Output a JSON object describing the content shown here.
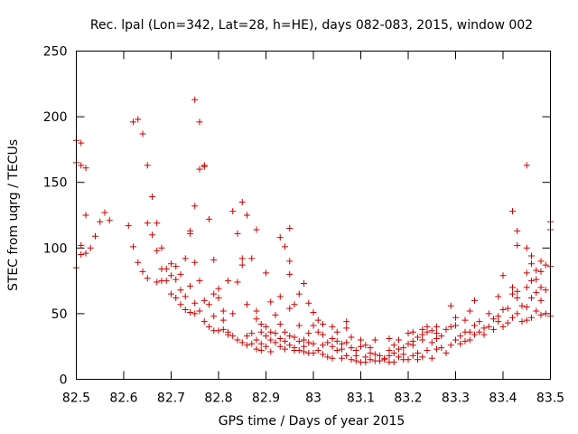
{
  "chart_data": {
    "type": "scatter",
    "title": "Rec. lpal (Lon=342, Lat=28, h=HE), days 082-083, 2015, window 002",
    "xlabel": "GPS time / Days of year 2015",
    "ylabel": "STEC from uqrg / TECUs",
    "xlim": [
      82.5,
      83.5
    ],
    "ylim": [
      0,
      250
    ],
    "xticks": [
      "82.5",
      "82.6",
      "82.7",
      "82.8",
      "82.9",
      "83",
      "83.1",
      "83.2",
      "83.3",
      "83.4",
      "83.5"
    ],
    "yticks": [
      "0",
      "50",
      "100",
      "150",
      "200",
      "250"
    ],
    "grid": false,
    "legend": "none",
    "marker": "plus",
    "color": "#cc0000",
    "series": [
      {
        "points": [
          [
            82.5,
            85
          ],
          [
            82.5,
            165
          ],
          [
            82.5,
            182
          ],
          [
            82.51,
            180
          ],
          [
            82.51,
            163
          ],
          [
            82.51,
            102
          ],
          [
            82.51,
            95
          ],
          [
            82.52,
            161
          ],
          [
            82.52,
            125
          ],
          [
            82.52,
            96
          ],
          [
            82.53,
            100
          ],
          [
            82.54,
            109
          ],
          [
            82.55,
            120
          ],
          [
            82.56,
            127
          ],
          [
            82.57,
            121
          ],
          [
            82.61,
            117
          ],
          [
            82.62,
            101
          ],
          [
            82.62,
            196
          ],
          [
            82.63,
            198
          ],
          [
            82.63,
            89
          ],
          [
            82.64,
            187
          ],
          [
            82.64,
            82
          ],
          [
            82.65,
            163
          ],
          [
            82.65,
            119
          ],
          [
            82.65,
            77
          ],
          [
            82.66,
            139
          ],
          [
            82.66,
            110
          ],
          [
            82.67,
            74
          ],
          [
            82.67,
            119
          ],
          [
            82.67,
            98
          ],
          [
            82.68,
            100
          ],
          [
            82.68,
            84
          ],
          [
            82.68,
            75
          ],
          [
            82.69,
            84
          ],
          [
            82.69,
            75
          ],
          [
            82.7,
            88
          ],
          [
            82.7,
            79
          ],
          [
            82.7,
            65
          ],
          [
            82.71,
            86
          ],
          [
            82.71,
            76
          ],
          [
            82.71,
            62
          ],
          [
            82.72,
            80
          ],
          [
            82.72,
            68
          ],
          [
            82.72,
            57
          ],
          [
            82.73,
            92
          ],
          [
            82.73,
            63
          ],
          [
            82.73,
            53
          ],
          [
            82.74,
            111
          ],
          [
            82.74,
            113
          ],
          [
            82.74,
            71
          ],
          [
            82.74,
            51
          ],
          [
            82.75,
            213
          ],
          [
            82.75,
            132
          ],
          [
            82.75,
            89
          ],
          [
            82.75,
            58
          ],
          [
            82.75,
            50
          ],
          [
            82.76,
            196
          ],
          [
            82.76,
            160
          ],
          [
            82.76,
            75
          ],
          [
            82.76,
            52
          ],
          [
            82.77,
            162
          ],
          [
            82.77,
            163
          ],
          [
            82.77,
            60
          ],
          [
            82.77,
            44
          ],
          [
            82.78,
            122
          ],
          [
            82.78,
            57
          ],
          [
            82.78,
            40
          ],
          [
            82.79,
            91
          ],
          [
            82.79,
            65
          ],
          [
            82.79,
            48
          ],
          [
            82.79,
            37
          ],
          [
            82.8,
            69
          ],
          [
            82.8,
            62
          ],
          [
            82.8,
            37
          ],
          [
            82.81,
            52
          ],
          [
            82.81,
            45
          ],
          [
            82.81,
            38
          ],
          [
            82.82,
            75
          ],
          [
            82.82,
            36
          ],
          [
            82.82,
            34
          ],
          [
            82.83,
            128
          ],
          [
            82.83,
            50
          ],
          [
            82.83,
            33
          ],
          [
            82.84,
            111
          ],
          [
            82.84,
            74
          ],
          [
            82.84,
            30
          ],
          [
            82.85,
            135
          ],
          [
            82.85,
            92
          ],
          [
            82.85,
            87
          ],
          [
            82.85,
            28
          ],
          [
            82.86,
            125
          ],
          [
            82.86,
            57
          ],
          [
            82.86,
            33
          ],
          [
            82.86,
            26
          ],
          [
            82.87,
            92
          ],
          [
            82.87,
            27
          ],
          [
            82.87,
            35
          ],
          [
            82.88,
            114
          ],
          [
            82.88,
            52
          ],
          [
            82.88,
            46
          ],
          [
            82.88,
            30
          ],
          [
            82.88,
            23
          ],
          [
            82.89,
            42
          ],
          [
            82.89,
            36
          ],
          [
            82.89,
            27
          ],
          [
            82.89,
            22
          ],
          [
            82.9,
            81
          ],
          [
            82.9,
            40
          ],
          [
            82.9,
            33
          ],
          [
            82.9,
            25
          ],
          [
            82.91,
            59
          ],
          [
            82.91,
            36
          ],
          [
            82.91,
            30
          ],
          [
            82.91,
            21
          ],
          [
            82.92,
            49
          ],
          [
            82.92,
            35
          ],
          [
            82.92,
            28
          ],
          [
            82.93,
            108
          ],
          [
            82.93,
            63
          ],
          [
            82.93,
            42
          ],
          [
            82.93,
            31
          ],
          [
            82.93,
            25
          ],
          [
            82.94,
            101
          ],
          [
            82.94,
            36
          ],
          [
            82.94,
            29
          ],
          [
            82.94,
            23
          ],
          [
            82.95,
            115
          ],
          [
            82.95,
            90
          ],
          [
            82.95,
            80
          ],
          [
            82.95,
            54
          ],
          [
            82.95,
            33
          ],
          [
            82.95,
            26
          ],
          [
            82.96,
            57
          ],
          [
            82.96,
            32
          ],
          [
            82.96,
            24
          ],
          [
            82.96,
            22
          ],
          [
            82.97,
            65
          ],
          [
            82.97,
            41
          ],
          [
            82.97,
            29
          ],
          [
            82.97,
            22
          ],
          [
            82.98,
            73
          ],
          [
            82.98,
            30
          ],
          [
            82.98,
            25
          ],
          [
            82.98,
            21
          ],
          [
            82.99,
            58
          ],
          [
            82.99,
            35
          ],
          [
            82.99,
            28
          ],
          [
            82.99,
            20
          ],
          [
            83.0,
            51
          ],
          [
            83.0,
            41
          ],
          [
            83.0,
            27
          ],
          [
            83.0,
            20
          ],
          [
            83.01,
            45
          ],
          [
            83.01,
            36
          ],
          [
            83.01,
            22
          ],
          [
            83.02,
            42
          ],
          [
            83.02,
            34
          ],
          [
            83.02,
            26
          ],
          [
            83.02,
            19
          ],
          [
            83.03,
            28
          ],
          [
            83.03,
            17
          ],
          [
            83.04,
            40
          ],
          [
            83.04,
            31
          ],
          [
            83.04,
            25
          ],
          [
            83.04,
            16
          ],
          [
            83.05,
            36
          ],
          [
            83.05,
            29
          ],
          [
            83.05,
            22
          ],
          [
            83.06,
            27
          ],
          [
            83.06,
            23
          ],
          [
            83.06,
            16
          ],
          [
            83.07,
            44
          ],
          [
            83.07,
            39
          ],
          [
            83.07,
            28
          ],
          [
            83.07,
            18
          ],
          [
            83.08,
            32
          ],
          [
            83.08,
            24
          ],
          [
            83.08,
            15
          ],
          [
            83.09,
            22
          ],
          [
            83.09,
            18
          ],
          [
            83.09,
            14
          ],
          [
            83.1,
            30
          ],
          [
            83.1,
            25
          ],
          [
            83.1,
            13
          ],
          [
            83.11,
            26
          ],
          [
            83.11,
            17
          ],
          [
            83.11,
            13
          ],
          [
            83.12,
            24
          ],
          [
            83.12,
            20
          ],
          [
            83.12,
            15
          ],
          [
            83.13,
            30
          ],
          [
            83.13,
            19
          ],
          [
            83.13,
            14
          ],
          [
            83.14,
            18
          ],
          [
            83.14,
            14
          ],
          [
            83.15,
            16
          ],
          [
            83.15,
            15
          ],
          [
            83.16,
            31
          ],
          [
            83.16,
            22
          ],
          [
            83.16,
            18
          ],
          [
            83.16,
            13
          ],
          [
            83.17,
            26
          ],
          [
            83.17,
            20
          ],
          [
            83.17,
            13
          ],
          [
            83.18,
            30
          ],
          [
            83.18,
            23
          ],
          [
            83.18,
            17
          ],
          [
            83.19,
            24
          ],
          [
            83.19,
            19
          ],
          [
            83.19,
            15
          ],
          [
            83.2,
            35
          ],
          [
            83.2,
            27
          ],
          [
            83.2,
            15
          ],
          [
            83.21,
            36
          ],
          [
            83.21,
            29
          ],
          [
            83.21,
            26
          ],
          [
            83.21,
            18
          ],
          [
            83.22,
            32
          ],
          [
            83.22,
            20
          ],
          [
            83.22,
            15
          ],
          [
            83.23,
            38
          ],
          [
            83.23,
            34
          ],
          [
            83.23,
            30
          ],
          [
            83.23,
            17
          ],
          [
            83.24,
            40
          ],
          [
            83.24,
            36
          ],
          [
            83.24,
            22
          ],
          [
            83.25,
            37
          ],
          [
            83.25,
            28
          ],
          [
            83.25,
            16
          ],
          [
            83.26,
            40
          ],
          [
            83.26,
            35
          ],
          [
            83.26,
            31
          ],
          [
            83.26,
            23
          ],
          [
            83.27,
            33
          ],
          [
            83.27,
            24
          ],
          [
            83.28,
            38
          ],
          [
            83.28,
            20
          ],
          [
            83.29,
            56
          ],
          [
            83.29,
            40
          ],
          [
            83.29,
            26
          ],
          [
            83.3,
            47
          ],
          [
            83.3,
            41
          ],
          [
            83.3,
            30
          ],
          [
            83.31,
            33
          ],
          [
            83.31,
            27
          ],
          [
            83.32,
            45
          ],
          [
            83.32,
            36
          ],
          [
            83.32,
            29
          ],
          [
            83.33,
            52
          ],
          [
            83.33,
            36
          ],
          [
            83.33,
            30
          ],
          [
            83.34,
            60
          ],
          [
            83.34,
            41
          ],
          [
            83.34,
            34
          ],
          [
            83.35,
            44
          ],
          [
            83.35,
            36
          ],
          [
            83.36,
            39
          ],
          [
            83.36,
            34
          ],
          [
            83.37,
            50
          ],
          [
            83.37,
            40
          ],
          [
            83.38,
            46
          ],
          [
            83.38,
            38
          ],
          [
            83.39,
            63
          ],
          [
            83.39,
            48
          ],
          [
            83.39,
            44
          ],
          [
            83.4,
            79
          ],
          [
            83.4,
            53
          ],
          [
            83.4,
            40
          ],
          [
            83.41,
            54
          ],
          [
            83.41,
            43
          ],
          [
            83.42,
            128
          ],
          [
            83.42,
            70
          ],
          [
            83.42,
            65
          ],
          [
            83.42,
            47
          ],
          [
            83.43,
            113
          ],
          [
            83.43,
            102
          ],
          [
            83.43,
            67
          ],
          [
            83.43,
            62
          ],
          [
            83.43,
            50
          ],
          [
            83.44,
            56
          ],
          [
            83.44,
            44
          ],
          [
            83.45,
            163
          ],
          [
            83.45,
            100
          ],
          [
            83.45,
            81
          ],
          [
            83.45,
            70
          ],
          [
            83.45,
            55
          ],
          [
            83.45,
            45
          ],
          [
            83.46,
            94
          ],
          [
            83.46,
            88
          ],
          [
            83.46,
            75
          ],
          [
            83.46,
            62
          ],
          [
            83.46,
            47
          ],
          [
            83.47,
            83
          ],
          [
            83.47,
            76
          ],
          [
            83.47,
            66
          ],
          [
            83.47,
            52
          ],
          [
            83.48,
            90
          ],
          [
            83.48,
            82
          ],
          [
            83.48,
            70
          ],
          [
            83.48,
            60
          ],
          [
            83.48,
            49
          ],
          [
            83.49,
            87
          ],
          [
            83.49,
            68
          ],
          [
            83.49,
            50
          ],
          [
            83.5,
            120
          ],
          [
            83.5,
            114
          ],
          [
            83.5,
            86
          ],
          [
            83.5,
            48
          ]
        ]
      }
    ]
  }
}
